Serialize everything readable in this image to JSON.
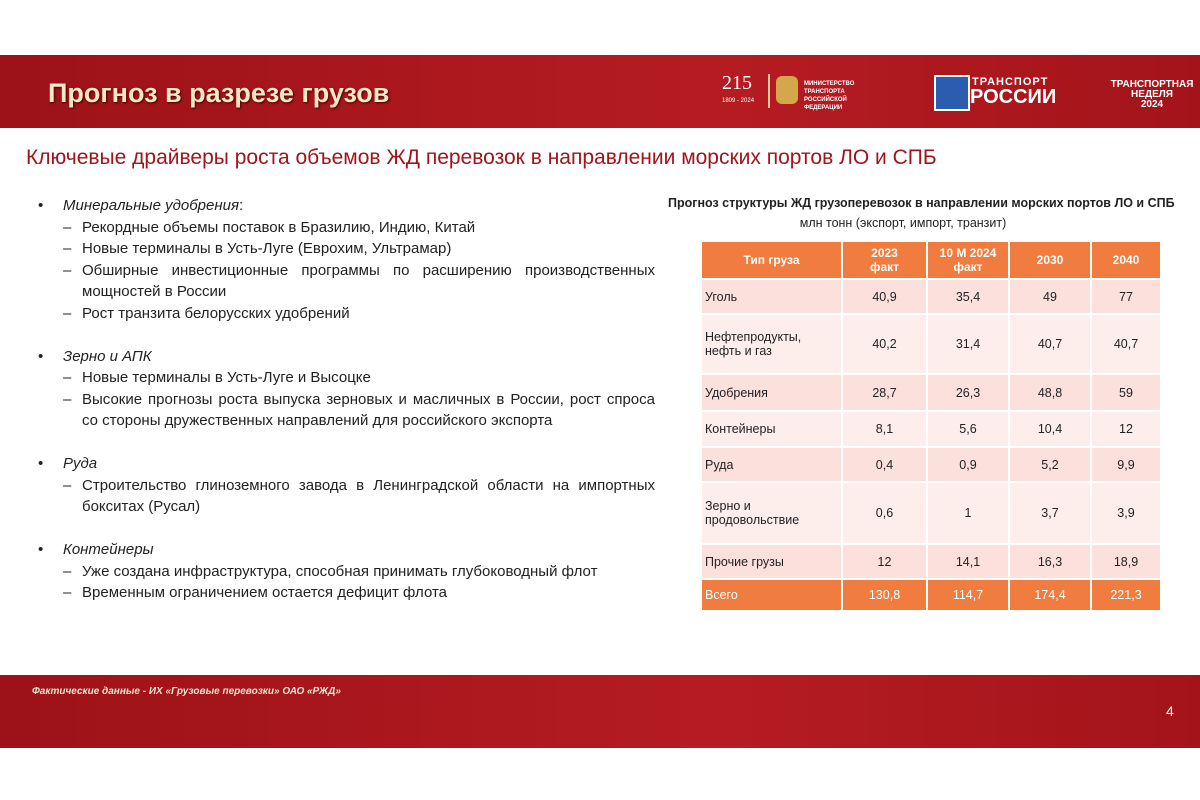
{
  "header": {
    "title": "Прогноз в разрезе грузов",
    "logos": {
      "anniversary": "215",
      "years": "1809 - 2024",
      "ministry": "МИНИСТЕРСТВО ТРАНСПОРТА РОССИЙСКОЙ ФЕДЕРАЦИИ",
      "brand_top": "ТРАНСПОРТ",
      "brand_bottom": "РОССИИ",
      "week": [
        "ТРАНСПОРТНАЯ",
        "НЕДЕЛЯ",
        "2024"
      ]
    }
  },
  "subtitle": "Ключевые драйверы роста объемов ЖД перевозок в направлении морских портов ЛО и СПБ",
  "bullets": [
    {
      "title": "Минеральные удобрения",
      "suffix": ":",
      "items": [
        "Рекордные объемы поставок в Бразилию, Индию, Китай",
        "Новые терминалы в Усть-Луге (Еврохим, Ультрамар)",
        "Обширные инвестиционные программы по расширению производственных мощностей в России",
        "Рост транзита белорусских удобрений"
      ]
    },
    {
      "title": "Зерно и АПК",
      "items": [
        "Новые терминалы в Усть-Луге и Высоцке",
        "Высокие прогнозы роста выпуска зерновых и масличных в России, рост спроса со стороны дружественных направлений для российского экспорта"
      ]
    },
    {
      "title": "Руда",
      "items": [
        "Строительство глиноземного завода в Ленинградской области на импортных бокситах (Русал)"
      ]
    },
    {
      "title": "Контейнеры",
      "items": [
        "Уже создана инфраструктура, способная принимать глубоководный флот",
        "Временным ограничением остается дефицит флота"
      ]
    }
  ],
  "table": {
    "title": "Прогноз структуры ЖД грузоперевозок в направлении морских портов ЛО и СПБ",
    "subtitle": "млн тонн (экспорт, импорт, транзит)",
    "columns": [
      [
        "Тип груза"
      ],
      [
        "2023",
        "факт"
      ],
      [
        "10 М 2024",
        "факт"
      ],
      [
        "2030"
      ],
      [
        "2040"
      ]
    ],
    "rows": [
      [
        [
          "Уголь"
        ],
        "40,9",
        "35,4",
        "49",
        "77"
      ],
      [
        [
          "Нефтепродукты,",
          "нефть и газ"
        ],
        "40,2",
        "31,4",
        "40,7",
        "40,7"
      ],
      [
        [
          "Удобрения"
        ],
        "28,7",
        "26,3",
        "48,8",
        "59"
      ],
      [
        [
          "Контейнеры"
        ],
        "8,1",
        "5,6",
        "10,4",
        "12"
      ],
      [
        [
          "Руда"
        ],
        "0,4",
        "0,9",
        "5,2",
        "9,9"
      ],
      [
        [
          "Зерно и",
          "продовольствие"
        ],
        "0,6",
        "1",
        "3,7",
        "3,9"
      ],
      [
        [
          "Прочие грузы"
        ],
        "12",
        "14,1",
        "16,3",
        "18,9"
      ]
    ],
    "total": [
      [
        "Всего"
      ],
      "130,8",
      "114,7",
      "174,4",
      "221,3"
    ]
  },
  "footer": {
    "note": "Фактические данные - ИХ «Грузовые перевозки» ОАО «РЖД»",
    "page": "4"
  }
}
